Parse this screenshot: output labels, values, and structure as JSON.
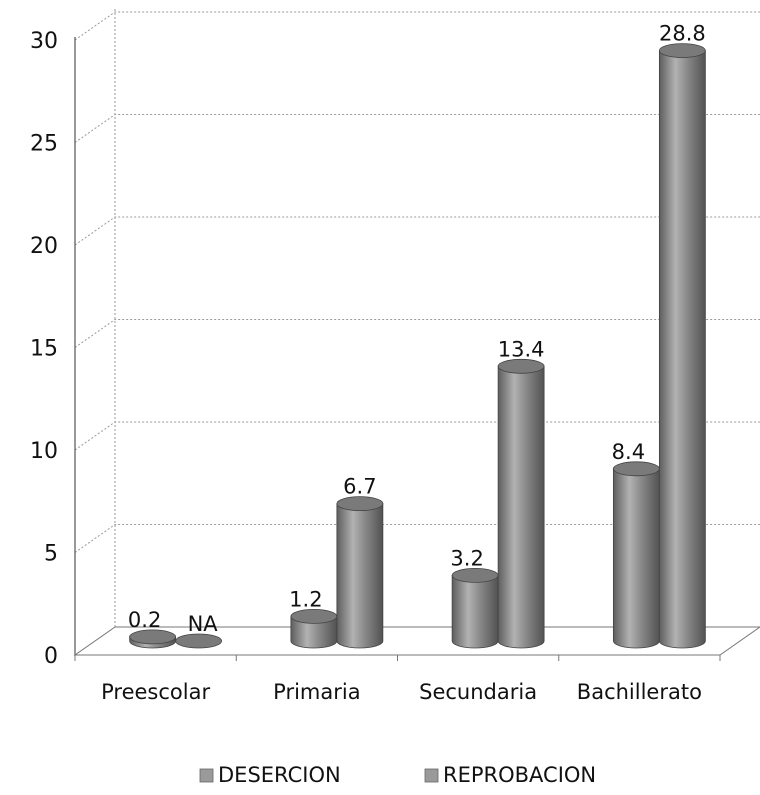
{
  "chart_data": {
    "type": "bar",
    "categories": [
      "Preescolar",
      "Primaria",
      "Secundaria",
      "Bachillerato"
    ],
    "series": [
      {
        "name": "DESERCION",
        "values": [
          0.2,
          1.2,
          3.2,
          8.4
        ],
        "labels": [
          "0.2",
          "1.2",
          "3.2",
          "8.4"
        ]
      },
      {
        "name": "REPROBACION",
        "values": [
          null,
          6.7,
          13.4,
          28.8
        ],
        "labels": [
          "NA",
          "6.7",
          "13.4",
          "28.8"
        ]
      }
    ],
    "yticks": [
      "0",
      "5",
      "10",
      "15",
      "20",
      "25",
      "30"
    ],
    "ylim": [
      0,
      30
    ],
    "grid": true,
    "legend_position": "bottom",
    "style": "3d-cylinder",
    "colors": {
      "bar_fill": "#8d8d8d",
      "bar_dark": "#5e5e5e",
      "bar_light": "#b9b9b9",
      "bar_top": "#7a7a7a"
    }
  }
}
